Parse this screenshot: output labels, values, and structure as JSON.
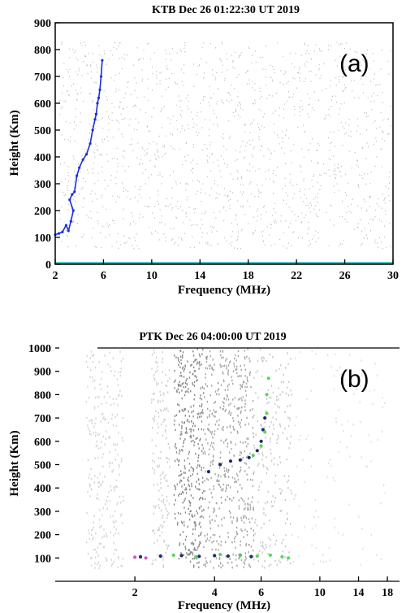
{
  "chart_data": [
    {
      "type": "scatter",
      "panel_label": "(a)",
      "title": "KTB  Dec  26  01:22:30 UT  2019",
      "xlabel": "Frequency (MHz)",
      "ylabel": "Height (Km)",
      "x_scale": "linear",
      "xlim": [
        2,
        30
      ],
      "ylim": [
        0,
        900
      ],
      "x_ticks": [
        2,
        6,
        10,
        14,
        18,
        22,
        26,
        30
      ],
      "y_ticks": [
        0,
        100,
        200,
        300,
        400,
        500,
        600,
        700,
        800,
        900
      ],
      "grid": false,
      "colors": {
        "trace": "#1a2ee0",
        "noise": "#bdbdbd",
        "baseline": "#19b3b3"
      },
      "series": [
        {
          "color": "#1a2ee0",
          "x": [
            2.0,
            2.3,
            2.6,
            2.9,
            3.1,
            3.3,
            3.5,
            3.2,
            3.4,
            3.6,
            3.8,
            4.0,
            4.3,
            4.6,
            4.9,
            5.1,
            5.3,
            5.4,
            5.5,
            5.6,
            5.7,
            5.8,
            5.9
          ],
          "y": [
            110,
            115,
            120,
            145,
            125,
            160,
            200,
            240,
            260,
            270,
            330,
            360,
            390,
            410,
            450,
            500,
            540,
            560,
            600,
            620,
            650,
            700,
            760
          ]
        }
      ]
    },
    {
      "type": "scatter",
      "panel_label": "(b)",
      "title": "PTK  Dec  26  04:00:00 UT  2019",
      "xlabel": "Frequency (MHz)",
      "ylabel": "Height (Km)",
      "x_scale": "log",
      "xlim": [
        1,
        20
      ],
      "ylim": [
        0,
        1000
      ],
      "x_ticks": [
        2,
        4,
        6,
        10,
        14,
        18
      ],
      "y_ticks": [
        100,
        200,
        300,
        400,
        500,
        600,
        700,
        800,
        900,
        1000
      ],
      "grid": false,
      "colors": {
        "trace_dark": "#1f2a6b",
        "trace_green": "#5ed35e",
        "trace_magenta": "#d64fd6",
        "noise": "#9a9a9a"
      },
      "series": [
        {
          "color": "#1f2a6b",
          "x": [
            2.1,
            2.5,
            3.0,
            3.5,
            4.0,
            4.5,
            5.0,
            5.5,
            3.8,
            4.2,
            4.6,
            5.0,
            5.4,
            5.8,
            6.0,
            6.1,
            6.2
          ],
          "y": [
            105,
            108,
            110,
            107,
            110,
            108,
            112,
            106,
            470,
            500,
            515,
            520,
            530,
            560,
            600,
            650,
            700
          ]
        },
        {
          "color": "#5ed35e",
          "x": [
            2.8,
            3.4,
            4.2,
            5.0,
            5.8,
            6.5,
            7.2,
            7.6,
            5.6,
            6.0,
            6.2,
            6.3,
            6.3,
            6.4
          ],
          "y": [
            112,
            105,
            115,
            110,
            108,
            112,
            105,
            100,
            540,
            580,
            640,
            720,
            800,
            870
          ]
        },
        {
          "color": "#d64fd6",
          "x": [
            2.0,
            2.2
          ],
          "y": [
            103,
            100
          ]
        }
      ]
    }
  ]
}
